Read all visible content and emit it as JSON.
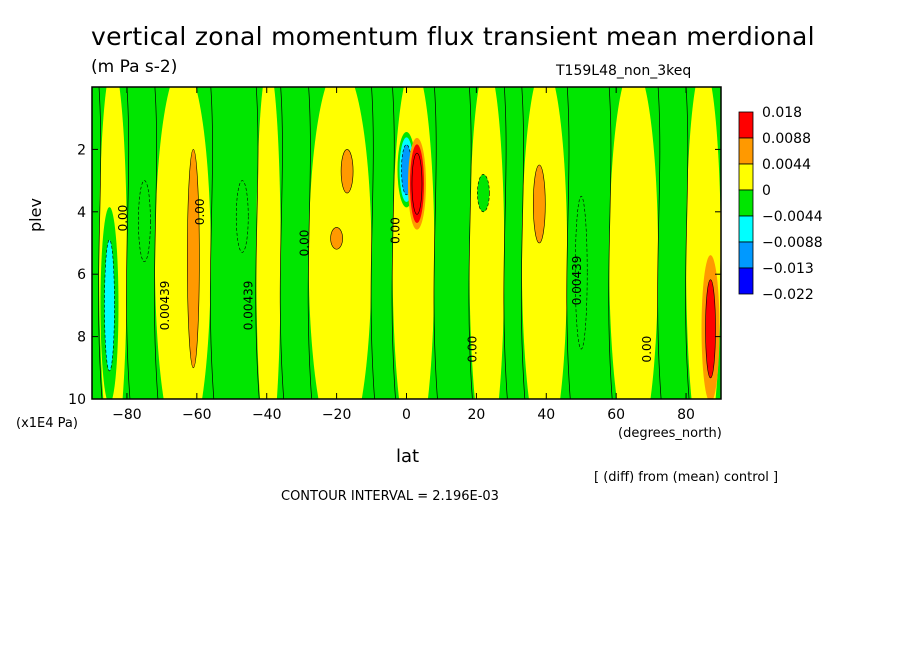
{
  "chart_data": {
    "type": "heatmap",
    "title": "vertical zonal momentum flux transient mean merdional",
    "units": "(m Pa s-2)",
    "run_label": "T159L48_non_3keq",
    "xlabel": "lat",
    "x_unit": "(degrees_north)",
    "ylabel": "plev",
    "y_unit": "(x1E4 Pa)",
    "xlim": [
      -90,
      90
    ],
    "ylim": [
      10,
      0
    ],
    "x_ticks": [
      -80,
      -60,
      -40,
      -20,
      0,
      20,
      40,
      60,
      80
    ],
    "x_tick_labels": [
      "−80",
      "−60",
      "−40",
      "−20",
      "0",
      "20",
      "40",
      "60",
      "80"
    ],
    "y_ticks": [
      2,
      4,
      6,
      8,
      10
    ],
    "y_tick_labels": [
      "2",
      "4",
      "6",
      "8",
      "10"
    ],
    "legend": {
      "levels": [
        "0.018",
        "0.0088",
        "0.0044",
        "0",
        "−0.0044",
        "−0.0088",
        "−0.013",
        "−0.022"
      ],
      "colors": [
        "#ff0000",
        "#ff9900",
        "#ffff00",
        "#00e600",
        "#00ffff",
        "#0099ff",
        "#0000ff"
      ]
    },
    "contour_labels": [
      "0.00",
      "0.00439",
      "0.00"
    ],
    "features": [
      {
        "lat": -85,
        "plev_top": 4.0,
        "plev_bot": 10,
        "level": -0.0088
      },
      {
        "lat": -75,
        "plev_top": 3.0,
        "plev_bot": 5.6,
        "level": -0.0044
      },
      {
        "lat": -61,
        "plev_top": 2.0,
        "plev_bot": 9.0,
        "level": 0.0044
      },
      {
        "lat": -47,
        "plev_top": 3.0,
        "plev_bot": 5.3,
        "level": -0.0044
      },
      {
        "lat": -17,
        "plev_top": 2.0,
        "plev_bot": 3.4,
        "level": 0.0044
      },
      {
        "lat": -20,
        "plev_top": 4.5,
        "plev_bot": 5.2,
        "level": 0.0044
      },
      {
        "lat": 0,
        "plev_top": 1.5,
        "plev_bot": 3.8,
        "level": -0.013
      },
      {
        "lat": 3,
        "plev_top": 1.7,
        "plev_bot": 4.5,
        "level": 0.018
      },
      {
        "lat": 22,
        "plev_top": 2.8,
        "plev_bot": 4.0,
        "level": -0.0044
      },
      {
        "lat": 38,
        "plev_top": 2.5,
        "plev_bot": 5.0,
        "level": 0.0044
      },
      {
        "lat": 50,
        "plev_top": 3.5,
        "plev_bot": 8.4,
        "level": -0.0044
      },
      {
        "lat": 87,
        "plev_top": 5.5,
        "plev_bot": 10,
        "level": 0.0088
      }
    ],
    "footer_note": "[ (diff) from (mean) control ]",
    "contour_interval": "CONTOUR INTERVAL = 2.196E-03"
  }
}
